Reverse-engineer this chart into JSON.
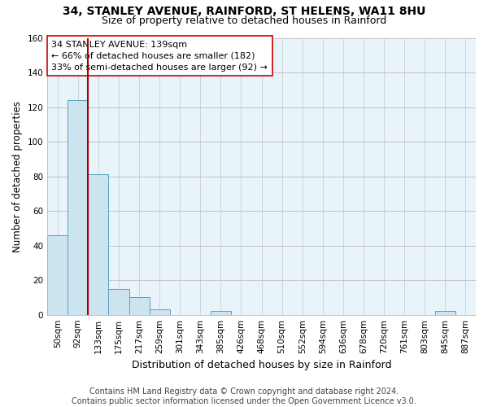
{
  "title": "34, STANLEY AVENUE, RAINFORD, ST HELENS, WA11 8HU",
  "subtitle": "Size of property relative to detached houses in Rainford",
  "xlabel": "Distribution of detached houses by size in Rainford",
  "ylabel": "Number of detached properties",
  "bar_labels": [
    "50sqm",
    "92sqm",
    "133sqm",
    "175sqm",
    "217sqm",
    "259sqm",
    "301sqm",
    "343sqm",
    "385sqm",
    "426sqm",
    "468sqm",
    "510sqm",
    "552sqm",
    "594sqm",
    "636sqm",
    "678sqm",
    "720sqm",
    "761sqm",
    "803sqm",
    "845sqm",
    "887sqm"
  ],
  "bar_values": [
    46,
    124,
    81,
    15,
    10,
    3,
    0,
    0,
    2,
    0,
    0,
    0,
    0,
    0,
    0,
    0,
    0,
    0,
    0,
    2,
    0
  ],
  "bar_color": "#cce4f0",
  "bar_edge_color": "#5a9fc0",
  "plot_bg_color": "#e8f4fa",
  "ylim": [
    0,
    160
  ],
  "yticks": [
    0,
    20,
    40,
    60,
    80,
    100,
    120,
    140,
    160
  ],
  "vline_index": 1.5,
  "vline_color": "#aa0000",
  "annotation_text": "34 STANLEY AVENUE: 139sqm\n← 66% of detached houses are smaller (182)\n33% of semi-detached houses are larger (92) →",
  "annotation_box_color": "#ffffff",
  "annotation_box_edge": "#cc0000",
  "footer_line1": "Contains HM Land Registry data © Crown copyright and database right 2024.",
  "footer_line2": "Contains public sector information licensed under the Open Government Licence v3.0.",
  "title_fontsize": 10,
  "subtitle_fontsize": 9,
  "xlabel_fontsize": 9,
  "ylabel_fontsize": 8.5,
  "tick_fontsize": 7.5,
  "annotation_fontsize": 8,
  "footer_fontsize": 7
}
